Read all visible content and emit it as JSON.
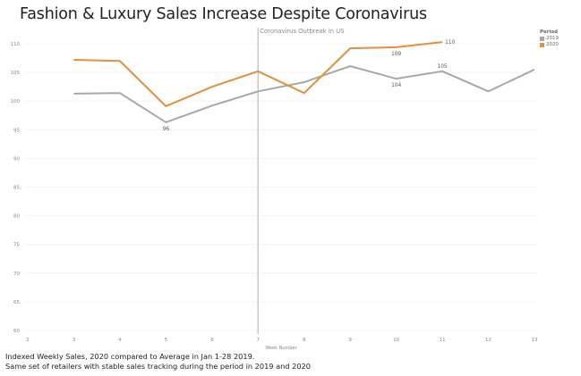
{
  "title": "Fashion & Luxury Sales Increase Despite Coronavirus",
  "captions": [
    "Indexed Weekly Sales, 2020 compared to Average in Jan 1-28 2019.",
    "Same set of retailers with stable sales tracking during the period in 2019 and 2020"
  ],
  "chart_data": {
    "type": "line",
    "title": "Fashion & Luxury Sales Increase Despite Coronavirus",
    "xlabel": "Week Number",
    "ylabel": "",
    "xlim": [
      2,
      13
    ],
    "ylim": [
      60,
      111
    ],
    "x_ticks": [
      2,
      3,
      4,
      5,
      6,
      7,
      8,
      9,
      10,
      11,
      12,
      13
    ],
    "y_ticks": [
      60,
      65,
      70,
      75,
      80,
      85,
      90,
      95,
      100,
      105,
      110
    ],
    "grid": true,
    "legend": {
      "title": "Period",
      "placement": "top-right"
    },
    "series": [
      {
        "name": "2019",
        "color": "#a8a8a8",
        "x": [
          3,
          4,
          5,
          6,
          7,
          8,
          9,
          10,
          11,
          12,
          13
        ],
        "values": [
          101.3,
          101.4,
          96.3,
          99.2,
          101.7,
          103.3,
          106.1,
          103.9,
          105.2,
          101.7,
          105.5
        ]
      },
      {
        "name": "2020",
        "color": "#e0913a",
        "x": [
          3,
          4,
          5,
          6,
          7,
          8,
          9,
          10,
          11
        ],
        "values": [
          107.2,
          107.0,
          99.1,
          102.5,
          105.2,
          101.4,
          109.2,
          109.4,
          110.3
        ]
      }
    ],
    "data_labels": [
      {
        "series": "2019",
        "x": 5,
        "text": "96",
        "pos": "below"
      },
      {
        "series": "2019",
        "x": 10,
        "text": "104",
        "pos": "below"
      },
      {
        "series": "2019",
        "x": 11,
        "text": "105",
        "pos": "above"
      },
      {
        "series": "2020",
        "x": 10,
        "text": "109",
        "pos": "below"
      },
      {
        "series": "2020",
        "x": 11,
        "text": "110",
        "pos": "right"
      }
    ],
    "reference_line": {
      "x": 7,
      "label": "Coronavirus Outbreak in US",
      "color": "#c8c8c8"
    }
  }
}
